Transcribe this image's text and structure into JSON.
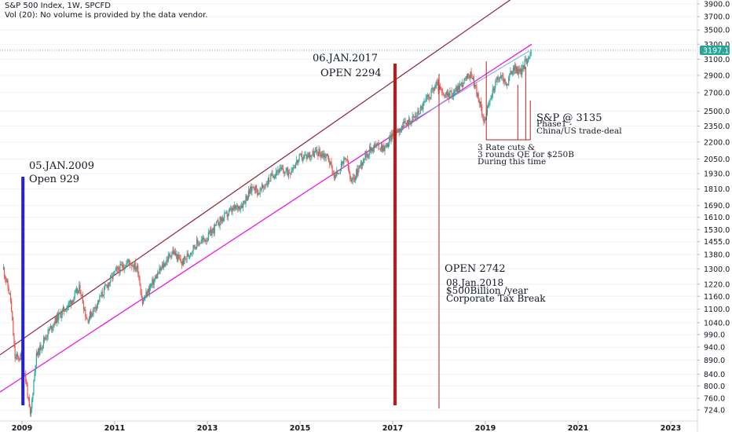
{
  "header": {
    "title": "S&P 500 Index, 1W, SPCFD",
    "volume_note": "Vol (20): No volume is provided by the data vendor."
  },
  "annotations": {
    "a2009_date": "05.JAN.2009",
    "a2009_open": "Open 929",
    "a2017_date": "06.JAN.2017",
    "a2017_open": "OPEN 2294",
    "a2018_open": "OPEN 2742",
    "a2018_date": "08.Jan.2018",
    "a2018_amount": "$500Billion /year",
    "a2018_desc": "Corporate Tax Break",
    "sp_level": "S&P @ 3135",
    "phase1_a": "Phase1 -",
    "phase1_b": "China/US trade-deal",
    "rate_a": "3 Rate cuts &",
    "rate_b": "3 rounds QE for $250B",
    "rate_c": "During this time"
  },
  "colors": {
    "blue_marker": "#1f1fe6",
    "red_marker": "#c41414",
    "thin_red": "#b22222",
    "channel_top": "#8b2335",
    "channel_bottom": "#e619e6",
    "up_candle": "#26a69a",
    "down_candle": "#ef5350",
    "price_tag": "#26a69a",
    "trend": "#7fa8e0"
  },
  "chart_data": {
    "type": "line",
    "title": "S&P 500 Index, 1W, SPCFD",
    "x_ticks": [
      "2009",
      "2011",
      "2013",
      "2015",
      "2017",
      "2019",
      "2021",
      "2023"
    ],
    "y_ticks": [
      724.0,
      760.0,
      800.0,
      840.0,
      890.0,
      940.0,
      990.0,
      1040.0,
      1100.0,
      1160.0,
      1220.0,
      1300.0,
      1380.0,
      1455.0,
      1530.0,
      1610.0,
      1690.0,
      1810.0,
      1930.0,
      2050.0,
      2200.0,
      2350.0,
      2500.0,
      2700.0,
      2900.0,
      3100.0,
      3300.0,
      3500.0,
      3700.0,
      3900.0
    ],
    "y_scale": "log",
    "last_price": "3197.1",
    "series": [
      {
        "name": "",
        "x": [
          2008.6,
          2008.75,
          2008.85,
          2009.0,
          2009.1,
          2009.18,
          2009.3,
          2009.5,
          2009.75,
          2010.0,
          2010.25,
          2010.4,
          2010.55,
          2010.75,
          2011.0,
          2011.3,
          2011.5,
          2011.6,
          2011.75,
          2012.0,
          2012.25,
          2012.45,
          2012.75,
          2013.0,
          2013.25,
          2013.5,
          2013.75,
          2014.0,
          2014.1,
          2014.5,
          2014.75,
          2015.0,
          2015.4,
          2015.6,
          2015.75,
          2016.0,
          2016.1,
          2016.4,
          2016.6,
          2016.85,
          2017.0,
          2017.5,
          2017.95,
          2018.1,
          2018.3,
          2018.7,
          2018.98,
          2019.2,
          2019.35,
          2019.45,
          2019.6,
          2019.75,
          2020.0
        ],
        "values": [
          1300,
          1150,
          900,
          900,
          800,
          700,
          900,
          980,
          1060,
          1120,
          1200,
          1050,
          1100,
          1180,
          1280,
          1340,
          1300,
          1130,
          1200,
          1300,
          1400,
          1330,
          1440,
          1480,
          1580,
          1650,
          1700,
          1840,
          1780,
          1960,
          1940,
          2060,
          2110,
          2070,
          1900,
          2060,
          1850,
          2080,
          2170,
          2150,
          2280,
          2450,
          2800,
          2650,
          2700,
          2920,
          2400,
          2800,
          2900,
          2780,
          3000,
          2930,
          3230
        ]
      }
    ],
    "channel_upper": {
      "x": [
        2008.6,
        2020.0
      ],
      "y": [
        910,
        4220
      ]
    },
    "channel_lower": {
      "x": [
        2008.6,
        2020.0
      ],
      "y": [
        780,
        3300
      ]
    },
    "markers": [
      {
        "date": "05.JAN.2009",
        "open": 929,
        "style": "blue thick"
      },
      {
        "date": "06.JAN.2017",
        "open": 2294,
        "style": "red thick"
      },
      {
        "date": "08.Jan.2018",
        "open": 2742,
        "style": "red thin"
      }
    ]
  }
}
